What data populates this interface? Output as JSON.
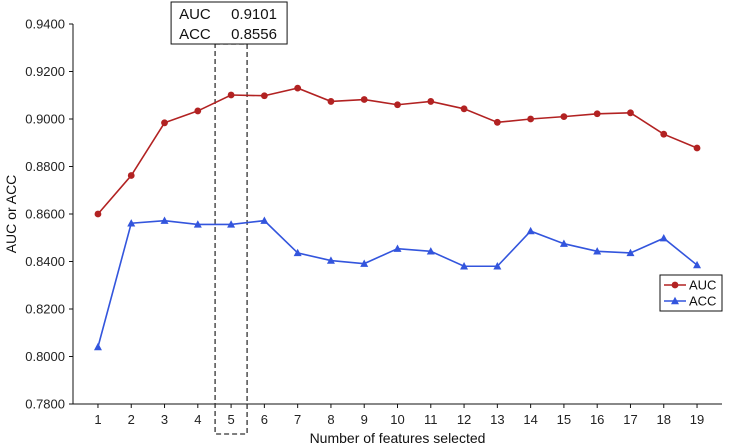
{
  "chart_data": {
    "type": "line",
    "title": "",
    "xlabel": "Number of features selected",
    "ylabel": "AUC  or  ACC",
    "x": [
      1,
      2,
      3,
      4,
      5,
      6,
      7,
      8,
      9,
      10,
      11,
      12,
      13,
      14,
      15,
      16,
      17,
      18,
      19
    ],
    "ylim": [
      0.78,
      0.94
    ],
    "yticks": [
      "0.7800",
      "0.8000",
      "0.8200",
      "0.8400",
      "0.8600",
      "0.8800",
      "0.9000",
      "0.9200",
      "0.9400"
    ],
    "ytick_values": [
      0.78,
      0.8,
      0.82,
      0.84,
      0.86,
      0.88,
      0.9,
      0.92,
      0.94
    ],
    "grid": false,
    "legend_position": "right",
    "series": [
      {
        "name": "AUC",
        "color": "#b22222",
        "marker": "circle",
        "values": [
          0.86,
          0.8762,
          0.8984,
          0.9034,
          0.9101,
          0.9098,
          0.913,
          0.9074,
          0.9082,
          0.906,
          0.9074,
          0.9043,
          0.8986,
          0.9,
          0.901,
          0.9022,
          0.9026,
          0.8936,
          0.8878
        ]
      },
      {
        "name": "ACC",
        "color": "#3355dd",
        "marker": "triangle",
        "values": [
          0.804,
          0.8561,
          0.8572,
          0.8556,
          0.8556,
          0.8572,
          0.8436,
          0.8404,
          0.8391,
          0.8454,
          0.8443,
          0.838,
          0.838,
          0.8528,
          0.8475,
          0.8443,
          0.8436,
          0.8498,
          0.8385
        ]
      }
    ],
    "annotation": {
      "x": 5,
      "lines": [
        {
          "label": "AUC",
          "value": "0.9101"
        },
        {
          "label": "ACC",
          "value": "0.8556"
        }
      ]
    }
  }
}
